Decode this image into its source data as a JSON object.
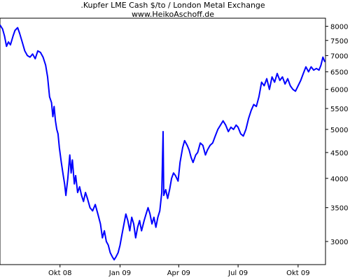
{
  "chart_data": {
    "type": "line",
    "title": ".Kupfer LME Cash $/to / London Metal Exchange",
    "subtitle": "www.HeikoAschoff.de",
    "y_scale": "log",
    "ylim": [
      2700,
      8300
    ],
    "xlim": [
      "2008-07-01",
      "2009-11-12"
    ],
    "grid": false,
    "line_color": "#0000ff",
    "yticks": [
      8000,
      7500,
      7000,
      6500,
      6000,
      5500,
      5000,
      4500,
      4000,
      3500,
      3000
    ],
    "xticks": [
      {
        "date": "2008-10-01",
        "label": "Okt 08"
      },
      {
        "date": "2009-01-01",
        "label": "Jan 09"
      },
      {
        "date": "2009-04-01",
        "label": "Apr 09"
      },
      {
        "date": "2009-07-01",
        "label": "Jul 09"
      },
      {
        "date": "2009-10-01",
        "label": "Okt 09"
      }
    ],
    "series": [
      {
        "points": [
          [
            "2008-07-01",
            8050
          ],
          [
            "2008-07-05",
            7900
          ],
          [
            "2008-07-08",
            7650
          ],
          [
            "2008-07-11",
            7300
          ],
          [
            "2008-07-14",
            7450
          ],
          [
            "2008-07-17",
            7350
          ],
          [
            "2008-07-21",
            7650
          ],
          [
            "2008-07-24",
            7850
          ],
          [
            "2008-07-28",
            7950
          ],
          [
            "2008-07-31",
            7750
          ],
          [
            "2008-08-04",
            7450
          ],
          [
            "2008-08-08",
            7150
          ],
          [
            "2008-08-12",
            7000
          ],
          [
            "2008-08-16",
            6950
          ],
          [
            "2008-08-20",
            7050
          ],
          [
            "2008-08-24",
            6900
          ],
          [
            "2008-08-28",
            7150
          ],
          [
            "2008-09-01",
            7100
          ],
          [
            "2008-09-05",
            6950
          ],
          [
            "2008-09-09",
            6700
          ],
          [
            "2008-09-12",
            6350
          ],
          [
            "2008-09-15",
            5800
          ],
          [
            "2008-09-18",
            5650
          ],
          [
            "2008-09-20",
            5300
          ],
          [
            "2008-09-22",
            5550
          ],
          [
            "2008-09-24",
            5200
          ],
          [
            "2008-09-26",
            5000
          ],
          [
            "2008-09-28",
            4900
          ],
          [
            "2008-09-30",
            4600
          ],
          [
            "2008-10-03",
            4300
          ],
          [
            "2008-10-06",
            4050
          ],
          [
            "2008-10-08",
            3900
          ],
          [
            "2008-10-10",
            3700
          ],
          [
            "2008-10-13",
            4000
          ],
          [
            "2008-10-16",
            4450
          ],
          [
            "2008-10-18",
            4100
          ],
          [
            "2008-10-20",
            4350
          ],
          [
            "2008-10-23",
            3900
          ],
          [
            "2008-10-25",
            4050
          ],
          [
            "2008-10-28",
            3750
          ],
          [
            "2008-10-31",
            3850
          ],
          [
            "2008-11-03",
            3700
          ],
          [
            "2008-11-06",
            3600
          ],
          [
            "2008-11-09",
            3750
          ],
          [
            "2008-11-12",
            3650
          ],
          [
            "2008-11-16",
            3500
          ],
          [
            "2008-11-20",
            3450
          ],
          [
            "2008-11-24",
            3550
          ],
          [
            "2008-11-28",
            3400
          ],
          [
            "2008-12-02",
            3250
          ],
          [
            "2008-12-05",
            3050
          ],
          [
            "2008-12-08",
            3150
          ],
          [
            "2008-12-11",
            3000
          ],
          [
            "2008-12-14",
            2950
          ],
          [
            "2008-12-17",
            2850
          ],
          [
            "2008-12-20",
            2800
          ],
          [
            "2008-12-23",
            2760
          ],
          [
            "2008-12-26",
            2800
          ],
          [
            "2008-12-29",
            2850
          ],
          [
            "2009-01-01",
            2950
          ],
          [
            "2009-01-04",
            3100
          ],
          [
            "2009-01-07",
            3250
          ],
          [
            "2009-01-10",
            3400
          ],
          [
            "2009-01-13",
            3300
          ],
          [
            "2009-01-16",
            3150
          ],
          [
            "2009-01-19",
            3350
          ],
          [
            "2009-01-22",
            3250
          ],
          [
            "2009-01-25",
            3050
          ],
          [
            "2009-01-28",
            3200
          ],
          [
            "2009-01-31",
            3300
          ],
          [
            "2009-02-03",
            3150
          ],
          [
            "2009-02-07",
            3300
          ],
          [
            "2009-02-10",
            3400
          ],
          [
            "2009-02-13",
            3500
          ],
          [
            "2009-02-16",
            3400
          ],
          [
            "2009-02-19",
            3250
          ],
          [
            "2009-02-22",
            3350
          ],
          [
            "2009-02-25",
            3200
          ],
          [
            "2009-02-28",
            3350
          ],
          [
            "2009-03-03",
            3450
          ],
          [
            "2009-03-06",
            3750
          ],
          [
            "2009-03-08",
            4950
          ],
          [
            "2009-03-09",
            3700
          ],
          [
            "2009-03-12",
            3800
          ],
          [
            "2009-03-15",
            3650
          ],
          [
            "2009-03-18",
            3800
          ],
          [
            "2009-03-21",
            4000
          ],
          [
            "2009-03-24",
            4100
          ],
          [
            "2009-03-27",
            4050
          ],
          [
            "2009-03-31",
            3950
          ],
          [
            "2009-04-03",
            4300
          ],
          [
            "2009-04-07",
            4600
          ],
          [
            "2009-04-10",
            4750
          ],
          [
            "2009-04-14",
            4650
          ],
          [
            "2009-04-17",
            4550
          ],
          [
            "2009-04-20",
            4400
          ],
          [
            "2009-04-23",
            4300
          ],
          [
            "2009-04-27",
            4450
          ],
          [
            "2009-04-30",
            4500
          ],
          [
            "2009-05-04",
            4700
          ],
          [
            "2009-05-08",
            4650
          ],
          [
            "2009-05-12",
            4450
          ],
          [
            "2009-05-15",
            4550
          ],
          [
            "2009-05-19",
            4650
          ],
          [
            "2009-05-23",
            4700
          ],
          [
            "2009-05-27",
            4850
          ],
          [
            "2009-05-31",
            5000
          ],
          [
            "2009-06-04",
            5100
          ],
          [
            "2009-06-08",
            5200
          ],
          [
            "2009-06-12",
            5100
          ],
          [
            "2009-06-16",
            4950
          ],
          [
            "2009-06-20",
            5050
          ],
          [
            "2009-06-24",
            5000
          ],
          [
            "2009-06-28",
            5100
          ],
          [
            "2009-07-01",
            5050
          ],
          [
            "2009-07-05",
            4900
          ],
          [
            "2009-07-09",
            4850
          ],
          [
            "2009-07-13",
            5000
          ],
          [
            "2009-07-17",
            5250
          ],
          [
            "2009-07-21",
            5450
          ],
          [
            "2009-07-25",
            5600
          ],
          [
            "2009-07-29",
            5550
          ],
          [
            "2009-08-02",
            5800
          ],
          [
            "2009-08-06",
            6200
          ],
          [
            "2009-08-10",
            6100
          ],
          [
            "2009-08-14",
            6300
          ],
          [
            "2009-08-18",
            6000
          ],
          [
            "2009-08-22",
            6350
          ],
          [
            "2009-08-26",
            6200
          ],
          [
            "2009-08-30",
            6450
          ],
          [
            "2009-09-03",
            6250
          ],
          [
            "2009-09-07",
            6350
          ],
          [
            "2009-09-11",
            6150
          ],
          [
            "2009-09-15",
            6300
          ],
          [
            "2009-09-19",
            6100
          ],
          [
            "2009-09-23",
            6000
          ],
          [
            "2009-09-27",
            5950
          ],
          [
            "2009-10-01",
            6100
          ],
          [
            "2009-10-05",
            6250
          ],
          [
            "2009-10-09",
            6450
          ],
          [
            "2009-10-13",
            6650
          ],
          [
            "2009-10-17",
            6500
          ],
          [
            "2009-10-21",
            6650
          ],
          [
            "2009-10-25",
            6550
          ],
          [
            "2009-10-29",
            6600
          ],
          [
            "2009-11-02",
            6550
          ],
          [
            "2009-11-05",
            6700
          ],
          [
            "2009-11-08",
            6950
          ],
          [
            "2009-11-11",
            6800
          ]
        ]
      }
    ]
  }
}
